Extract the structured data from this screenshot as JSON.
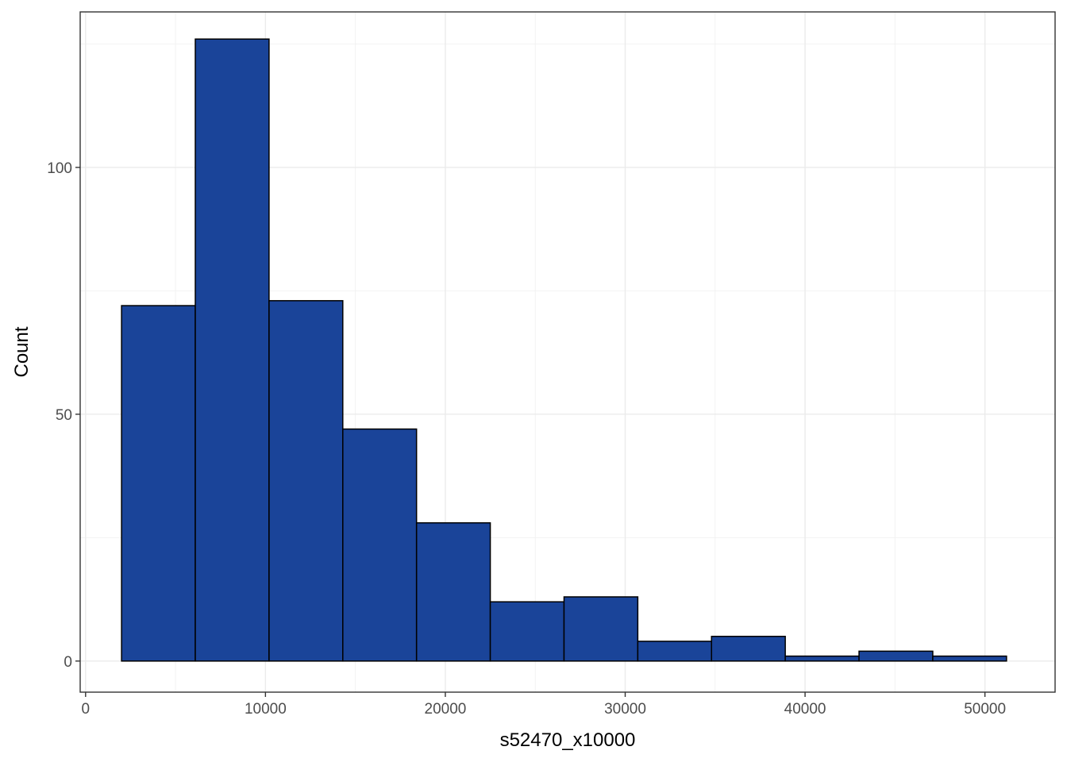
{
  "chart_data": {
    "type": "bar",
    "subtype": "histogram",
    "title": "",
    "xlabel": "s52470_x10000",
    "ylabel": "Count",
    "xlim": [
      -300,
      53900
    ],
    "ylim": [
      -6.3,
      131.5
    ],
    "x_ticks": [
      0,
      10000,
      20000,
      30000,
      40000,
      50000
    ],
    "y_ticks": [
      0,
      50,
      100
    ],
    "x_tick_labels": [
      "0",
      "10000",
      "20000",
      "30000",
      "40000",
      "50000"
    ],
    "y_tick_labels": [
      "0",
      "50",
      "100"
    ],
    "bins": [
      {
        "start": 2000,
        "end": 6100,
        "count": 72
      },
      {
        "start": 6100,
        "end": 10200,
        "count": 126
      },
      {
        "start": 10200,
        "end": 14300,
        "count": 73
      },
      {
        "start": 14300,
        "end": 18400,
        "count": 47
      },
      {
        "start": 18400,
        "end": 22500,
        "count": 28
      },
      {
        "start": 22500,
        "end": 26600,
        "count": 12
      },
      {
        "start": 26600,
        "end": 30700,
        "count": 13
      },
      {
        "start": 30700,
        "end": 34800,
        "count": 4
      },
      {
        "start": 34800,
        "end": 38900,
        "count": 5
      },
      {
        "start": 38900,
        "end": 43000,
        "count": 1
      },
      {
        "start": 43000,
        "end": 47100,
        "count": 2
      },
      {
        "start": 47100,
        "end": 51200,
        "count": 1
      }
    ],
    "grid": true,
    "legend": "none",
    "colors": {
      "bar_fill": "#1a4499",
      "bar_stroke": "#000000",
      "grid_major": "#ebebeb",
      "grid_minor": "#f2f2f2",
      "panel_border": "#333333",
      "tick_text": "#4d4d4d"
    }
  }
}
